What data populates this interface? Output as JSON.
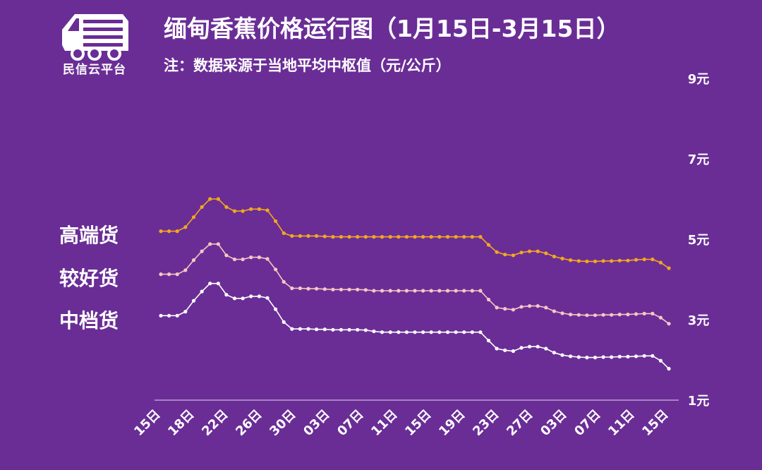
{
  "brand": {
    "name": "民信云平台",
    "color": "#ffffff"
  },
  "header": {
    "title": "缅甸香蕉价格运行图（1月15日-3月15日）",
    "note": "注：数据采源于当地平均中枢值（元/公斤）"
  },
  "colors": {
    "background": "#6a2d96",
    "high": "#f2a91a",
    "mid": "#f6c8c2",
    "low": "#ffffff"
  },
  "chart_data": {
    "type": "line",
    "title": "缅甸香蕉价格运行图（1月15日-3月15日）",
    "unit": "元/公斤",
    "ylim": [
      1,
      9
    ],
    "yticks": [
      "1元",
      "3元",
      "5元",
      "7元",
      "9元"
    ],
    "xticks": [
      "15日",
      "18日",
      "22日",
      "26日",
      "30日",
      "03日",
      "07日",
      "11日",
      "15日",
      "19日",
      "23日",
      "27日",
      "03日",
      "07日",
      "11日",
      "15日"
    ],
    "grid": false,
    "series": [
      {
        "name": "高端货",
        "values": [
          5.2,
          5.2,
          5.2,
          5.3,
          5.55,
          5.8,
          6.0,
          6.0,
          5.8,
          5.7,
          5.7,
          5.75,
          5.75,
          5.72,
          5.45,
          5.15,
          5.08,
          5.08,
          5.08,
          5.08,
          5.07,
          5.06,
          5.06,
          5.06,
          5.06,
          5.06,
          5.06,
          5.06,
          5.06,
          5.06,
          5.06,
          5.06,
          5.06,
          5.06,
          5.06,
          5.06,
          5.06,
          5.06,
          5.06,
          5.06,
          4.86,
          4.68,
          4.62,
          4.6,
          4.67,
          4.7,
          4.7,
          4.65,
          4.57,
          4.52,
          4.48,
          4.46,
          4.45,
          4.45,
          4.46,
          4.46,
          4.47,
          4.47,
          4.49,
          4.5,
          4.5,
          4.42,
          4.28
        ]
      },
      {
        "name": "较好货",
        "values": [
          4.13,
          4.13,
          4.13,
          4.23,
          4.48,
          4.7,
          4.88,
          4.88,
          4.6,
          4.5,
          4.5,
          4.55,
          4.55,
          4.51,
          4.25,
          3.94,
          3.78,
          3.78,
          3.77,
          3.77,
          3.76,
          3.75,
          3.75,
          3.75,
          3.75,
          3.74,
          3.72,
          3.72,
          3.72,
          3.72,
          3.72,
          3.72,
          3.72,
          3.72,
          3.72,
          3.72,
          3.72,
          3.72,
          3.72,
          3.72,
          3.5,
          3.3,
          3.27,
          3.25,
          3.32,
          3.34,
          3.34,
          3.3,
          3.21,
          3.16,
          3.13,
          3.12,
          3.11,
          3.11,
          3.12,
          3.12,
          3.13,
          3.13,
          3.14,
          3.15,
          3.15,
          3.05,
          2.9
        ]
      },
      {
        "name": "中档货",
        "values": [
          3.1,
          3.1,
          3.1,
          3.2,
          3.47,
          3.7,
          3.9,
          3.9,
          3.62,
          3.53,
          3.53,
          3.58,
          3.58,
          3.54,
          3.26,
          2.94,
          2.77,
          2.77,
          2.77,
          2.76,
          2.76,
          2.75,
          2.75,
          2.75,
          2.75,
          2.74,
          2.71,
          2.69,
          2.69,
          2.69,
          2.69,
          2.69,
          2.69,
          2.69,
          2.69,
          2.69,
          2.69,
          2.69,
          2.69,
          2.69,
          2.48,
          2.28,
          2.24,
          2.22,
          2.3,
          2.33,
          2.33,
          2.28,
          2.18,
          2.12,
          2.09,
          2.07,
          2.06,
          2.06,
          2.07,
          2.07,
          2.08,
          2.08,
          2.09,
          2.1,
          2.1,
          1.98,
          1.78
        ]
      }
    ]
  }
}
